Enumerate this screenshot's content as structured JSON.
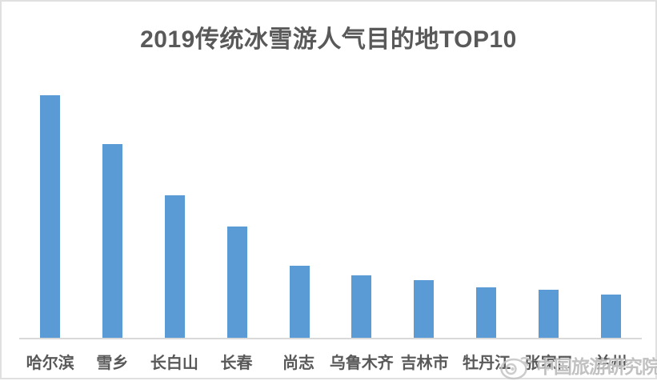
{
  "title": "2019传统冰雪游人气目的地TOP10",
  "watermark": {
    "icon": "weibo-icon",
    "text": "中国旅游研究院"
  },
  "colors": {
    "bar": "#5B9BD5",
    "title_text": "#595959",
    "label_text": "#595959",
    "axis_line": "#D9D9D9",
    "frame_border": "#E0E0E0",
    "watermark_text": "#B6B6B6",
    "background": "#FFFFFF"
  },
  "chart_data": {
    "type": "bar",
    "title": "2019传统冰雪游人气目的地TOP10",
    "categories": [
      "哈尔滨",
      "雪乡",
      "长白山",
      "长春",
      "尚志",
      "乌鲁木齐",
      "吉林市",
      "牡丹江",
      "张家口",
      "兰州"
    ],
    "values": [
      100,
      80,
      59,
      46,
      30,
      26,
      24,
      21,
      20,
      18
    ],
    "xlabel": "",
    "ylabel": "",
    "ylim": [
      0,
      100
    ],
    "grid": false,
    "legend": false,
    "value_axis_visible": false,
    "values_estimated_from_bar_heights": true
  }
}
